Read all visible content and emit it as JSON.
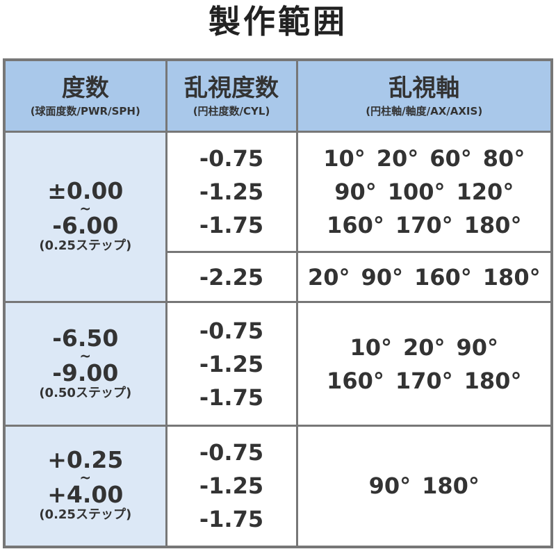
{
  "title": "製作範囲",
  "headers": [
    {
      "main": "度数",
      "sub": "(球面度数/PWR/SPH)"
    },
    {
      "main": "乱視度数",
      "sub": "(円柱度数/CYL)"
    },
    {
      "main": "乱視軸",
      "sub": "(円柱軸/軸度/AX/AXIS)"
    }
  ],
  "rows": [
    {
      "sph_from": "±0.00",
      "tilde": "~",
      "sph_to": "-6.00",
      "step": "(0.25ステップ)",
      "sub": [
        {
          "cyl": [
            "-0.75",
            "-1.25",
            "-1.75"
          ],
          "axis_lines": [
            [
              "10°",
              "20°",
              "60°",
              "80°"
            ],
            [
              "90°",
              "100°",
              "120°"
            ],
            [
              "160°",
              "170°",
              "180°"
            ]
          ]
        },
        {
          "cyl": [
            "-2.25"
          ],
          "axis_lines": [
            [
              "20°",
              "90°",
              "160°",
              "180°"
            ]
          ]
        }
      ]
    },
    {
      "sph_from": "-6.50",
      "tilde": "~",
      "sph_to": "-9.00",
      "step": "(0.50ステップ)",
      "sub": [
        {
          "cyl": [
            "-0.75",
            "-1.25",
            "-1.75"
          ],
          "axis_lines": [
            [
              "10°",
              "20°",
              "90°"
            ],
            [
              "160°",
              "170°",
              "180°"
            ]
          ]
        }
      ]
    },
    {
      "sph_from": "+0.25",
      "tilde": "~",
      "sph_to": "+4.00",
      "step": "(0.25ステップ)",
      "sub": [
        {
          "cyl": [
            "-0.75",
            "-1.25",
            "-1.75"
          ],
          "axis_lines": [
            [
              "90°",
              "180°"
            ]
          ]
        }
      ]
    }
  ],
  "colors": {
    "header_bg": "#a9c8ea",
    "sph_bg": "#dce8f6",
    "border": "#777777",
    "text": "#333333"
  }
}
